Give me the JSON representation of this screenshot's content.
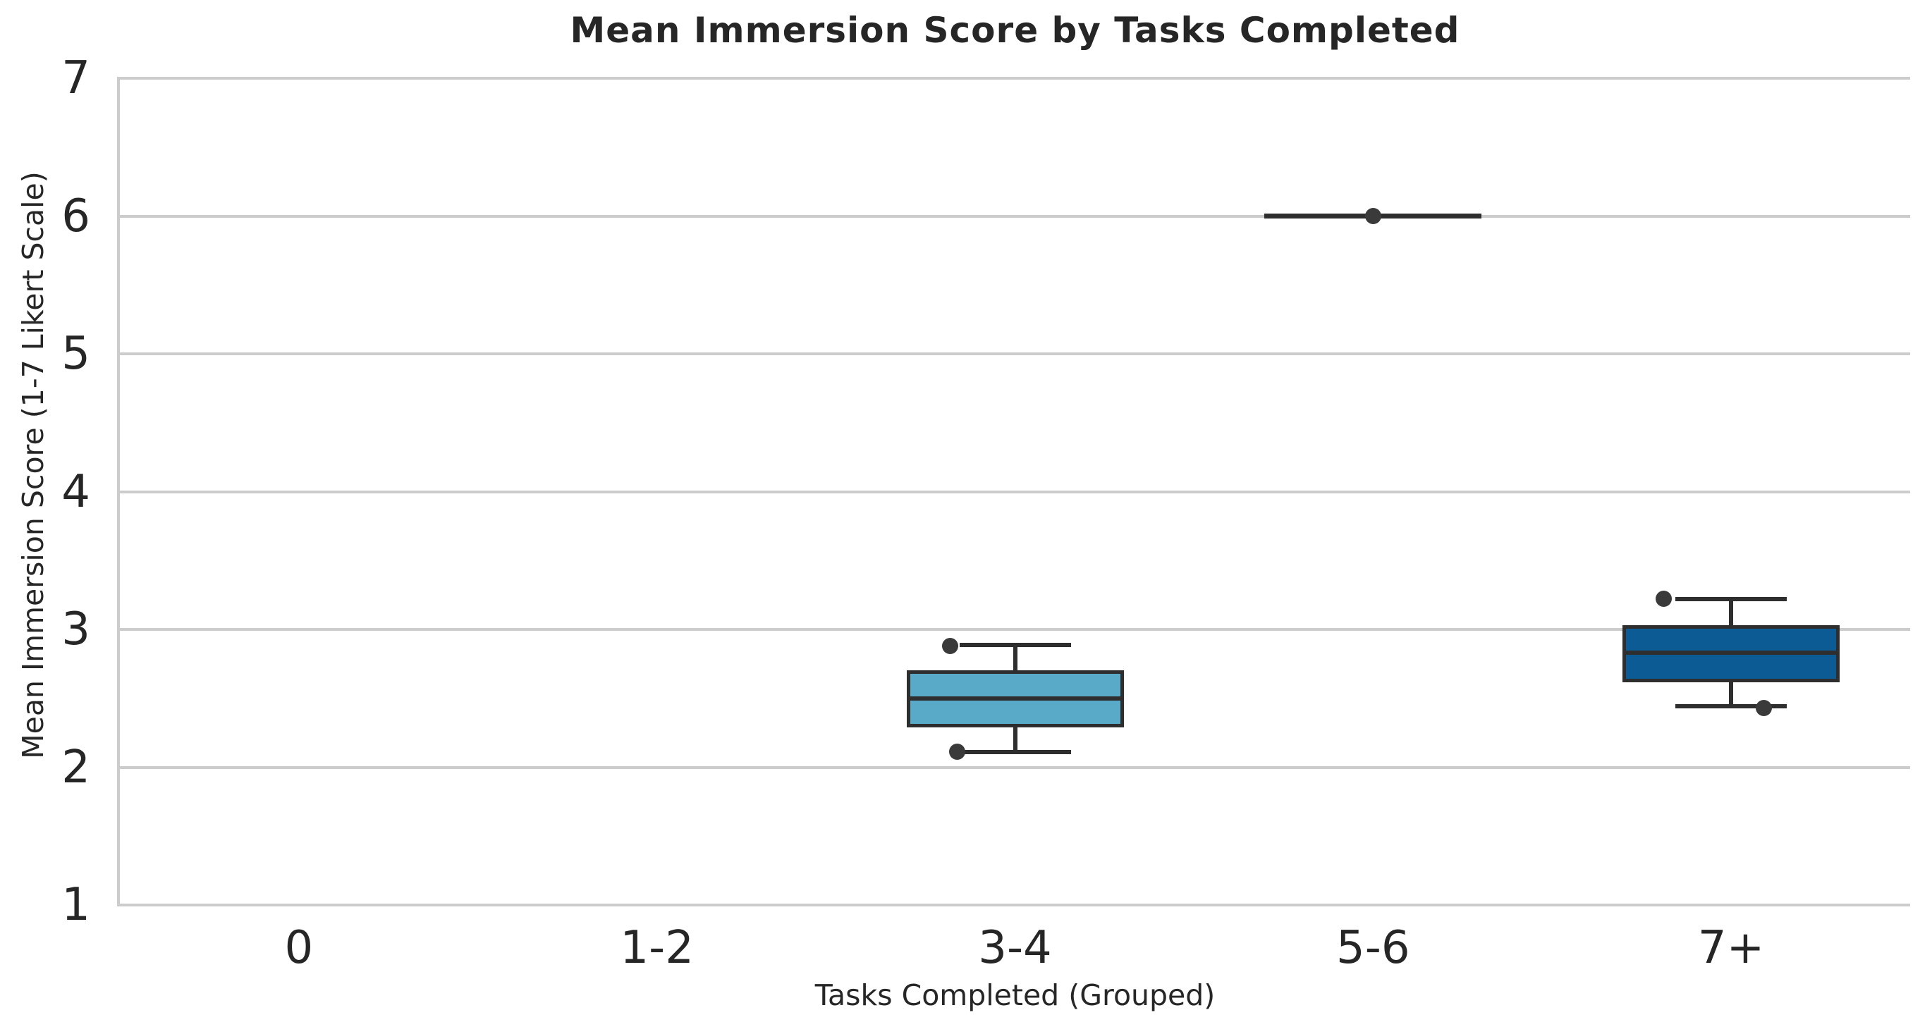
{
  "chart_data": {
    "type": "box",
    "title": "Mean Immersion Score by Tasks Completed",
    "xlabel": "Tasks Completed (Grouped)",
    "ylabel": "Mean Immersion Score (1-7 Likert Scale)",
    "ylim": [
      1,
      7
    ],
    "yticks": [
      1,
      2,
      3,
      4,
      5,
      6,
      7
    ],
    "categories": [
      "0",
      "1-2",
      "3-4",
      "5-6",
      "7+"
    ],
    "grid": "horizontal-only",
    "legend": "none",
    "colors": {
      "grid": "#cccccc",
      "spine": "#cccccc",
      "edge": "#2e2e2e",
      "point": "#3a3a3a",
      "text": "#262626",
      "box_fill_3_4": "#59a9c8",
      "box_fill_7plus": "#0c5b94"
    },
    "groups": [
      {
        "category": "0",
        "empty": true
      },
      {
        "category": "1-2",
        "empty": true
      },
      {
        "category": "3-4",
        "fill": "#59a9c8",
        "whisker_low": 2.11,
        "q1": 2.3,
        "median": 2.5,
        "q3": 2.69,
        "whisker_high": 2.89,
        "points": [
          {
            "value": 2.88,
            "offset": -0.181
          },
          {
            "value": 2.11,
            "offset": -0.162
          }
        ]
      },
      {
        "category": "5-6",
        "fill": null,
        "whisker_low": 6.0,
        "q1": 6.0,
        "median": 6.0,
        "q3": 6.0,
        "whisker_high": 6.0,
        "points": [
          {
            "value": 6.0,
            "offset": 0.0
          }
        ]
      },
      {
        "category": "7+",
        "fill": "#0c5b94",
        "whisker_low": 2.44,
        "q1": 2.63,
        "median": 2.83,
        "q3": 3.02,
        "whisker_high": 3.22,
        "points": [
          {
            "value": 3.22,
            "offset": -0.189
          },
          {
            "value": 2.43,
            "offset": 0.092
          }
        ]
      }
    ]
  }
}
